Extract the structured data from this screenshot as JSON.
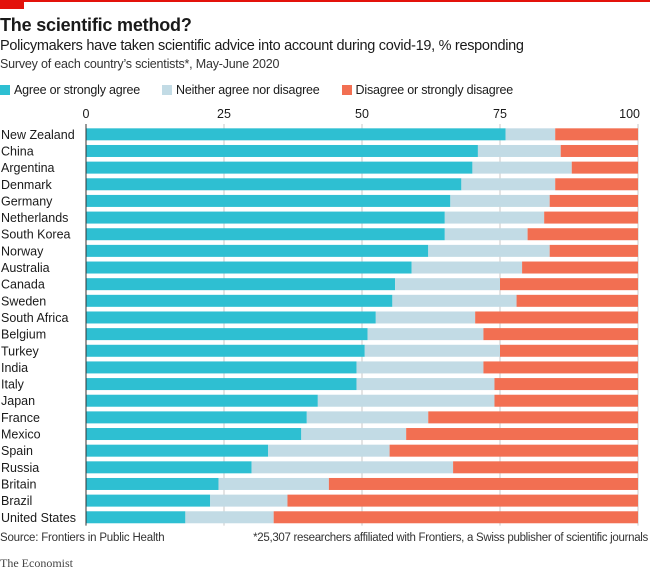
{
  "header": {
    "title": "The scientific method?",
    "subtitle": "Policymakers have taken scientific advice into account during covid-19, % responding",
    "survey_note": "Survey of each country’s scientists*, May-June 2020"
  },
  "footer": {
    "source": "Source: Frontiers in Public Health",
    "footnote": "*25,307 researchers affiliated with Frontiers, a Swiss publisher of scientific journals",
    "brand": "The Economist"
  },
  "colors": {
    "brand_red": "#e3120b",
    "agree": "#2ebfd2",
    "neither": "#c2dbe5",
    "disagree": "#f26f52",
    "gridline": "#c8c8c8",
    "axis": "#333333"
  },
  "chart_data": {
    "type": "bar",
    "orientation": "horizontal",
    "stacked": true,
    "title": "The scientific method?",
    "subtitle": "Policymakers have taken scientific advice into account during covid-19, % responding",
    "xlabel": "",
    "ylabel": "",
    "xlim": [
      0,
      100
    ],
    "xticks": [
      0,
      25,
      50,
      75,
      100
    ],
    "xtick_labels": [
      "0",
      "25",
      "50",
      "75",
      "100"
    ],
    "grid": true,
    "legend_position": "top-left",
    "categories": [
      "New Zealand",
      "China",
      "Argentina",
      "Denmark",
      "Germany",
      "Netherlands",
      "South Korea",
      "Norway",
      "Australia",
      "Canada",
      "Sweden",
      "South Africa",
      "Belgium",
      "Turkey",
      "India",
      "Italy",
      "Japan",
      "France",
      "Mexico",
      "Spain",
      "Russia",
      "Britain",
      "Brazil",
      "United States"
    ],
    "series": [
      {
        "name": "Agree or strongly agree",
        "color": "#2ebfd2",
        "values": [
          76,
          71,
          70,
          68,
          66,
          65,
          65,
          62,
          59,
          56,
          55.5,
          52.5,
          51,
          50.5,
          49,
          49,
          42,
          40,
          39,
          33,
          30,
          24,
          22.5,
          18
        ]
      },
      {
        "name": "Neither agree nor disagree",
        "color": "#c2dbe5",
        "values": [
          9,
          15,
          18,
          17,
          18,
          18,
          15,
          22,
          20,
          19,
          22.5,
          18,
          21,
          24.5,
          23,
          25,
          32,
          22,
          19,
          22,
          36.5,
          20,
          14,
          16
        ]
      },
      {
        "name": "Disagree or strongly disagree",
        "color": "#f26f52",
        "values": [
          15,
          14,
          12,
          15,
          16,
          17,
          20,
          16,
          21,
          25,
          22,
          29.5,
          28,
          25,
          28,
          26,
          26,
          38,
          42,
          45,
          33.5,
          56,
          63.5,
          66
        ]
      }
    ]
  }
}
